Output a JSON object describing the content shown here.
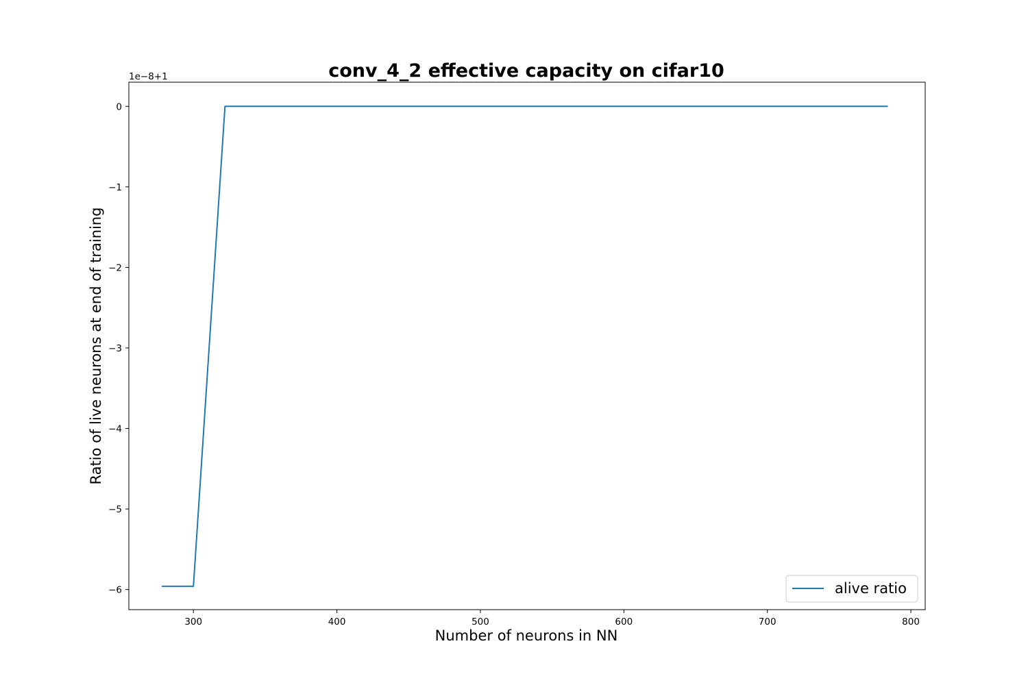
{
  "chart_data": {
    "type": "line",
    "title": "conv_4_2 effective capacity on cifar10",
    "xlabel": "Number of neurons in NN",
    "ylabel": "Ratio of live neurons at end of training",
    "y_offset_text": "1e−8+1",
    "xlim": [
      255,
      810
    ],
    "ylim": [
      -6.25,
      0.3
    ],
    "x_ticks": [
      300,
      400,
      500,
      600,
      700,
      800
    ],
    "x_tick_labels": [
      "300",
      "400",
      "500",
      "600",
      "700",
      "800"
    ],
    "y_ticks": [
      0,
      -1,
      -2,
      -3,
      -4,
      -5,
      -6
    ],
    "y_tick_labels": [
      "0",
      "−1",
      "−2",
      "−3",
      "−4",
      "−5",
      "−6"
    ],
    "grid": false,
    "legend_position": "lower-right",
    "series": [
      {
        "name": "alive ratio",
        "color": "#1f77b4",
        "x": [
          278,
          300,
          322,
          784
        ],
        "y": [
          -5.96,
          -5.96,
          0,
          0
        ]
      }
    ]
  }
}
